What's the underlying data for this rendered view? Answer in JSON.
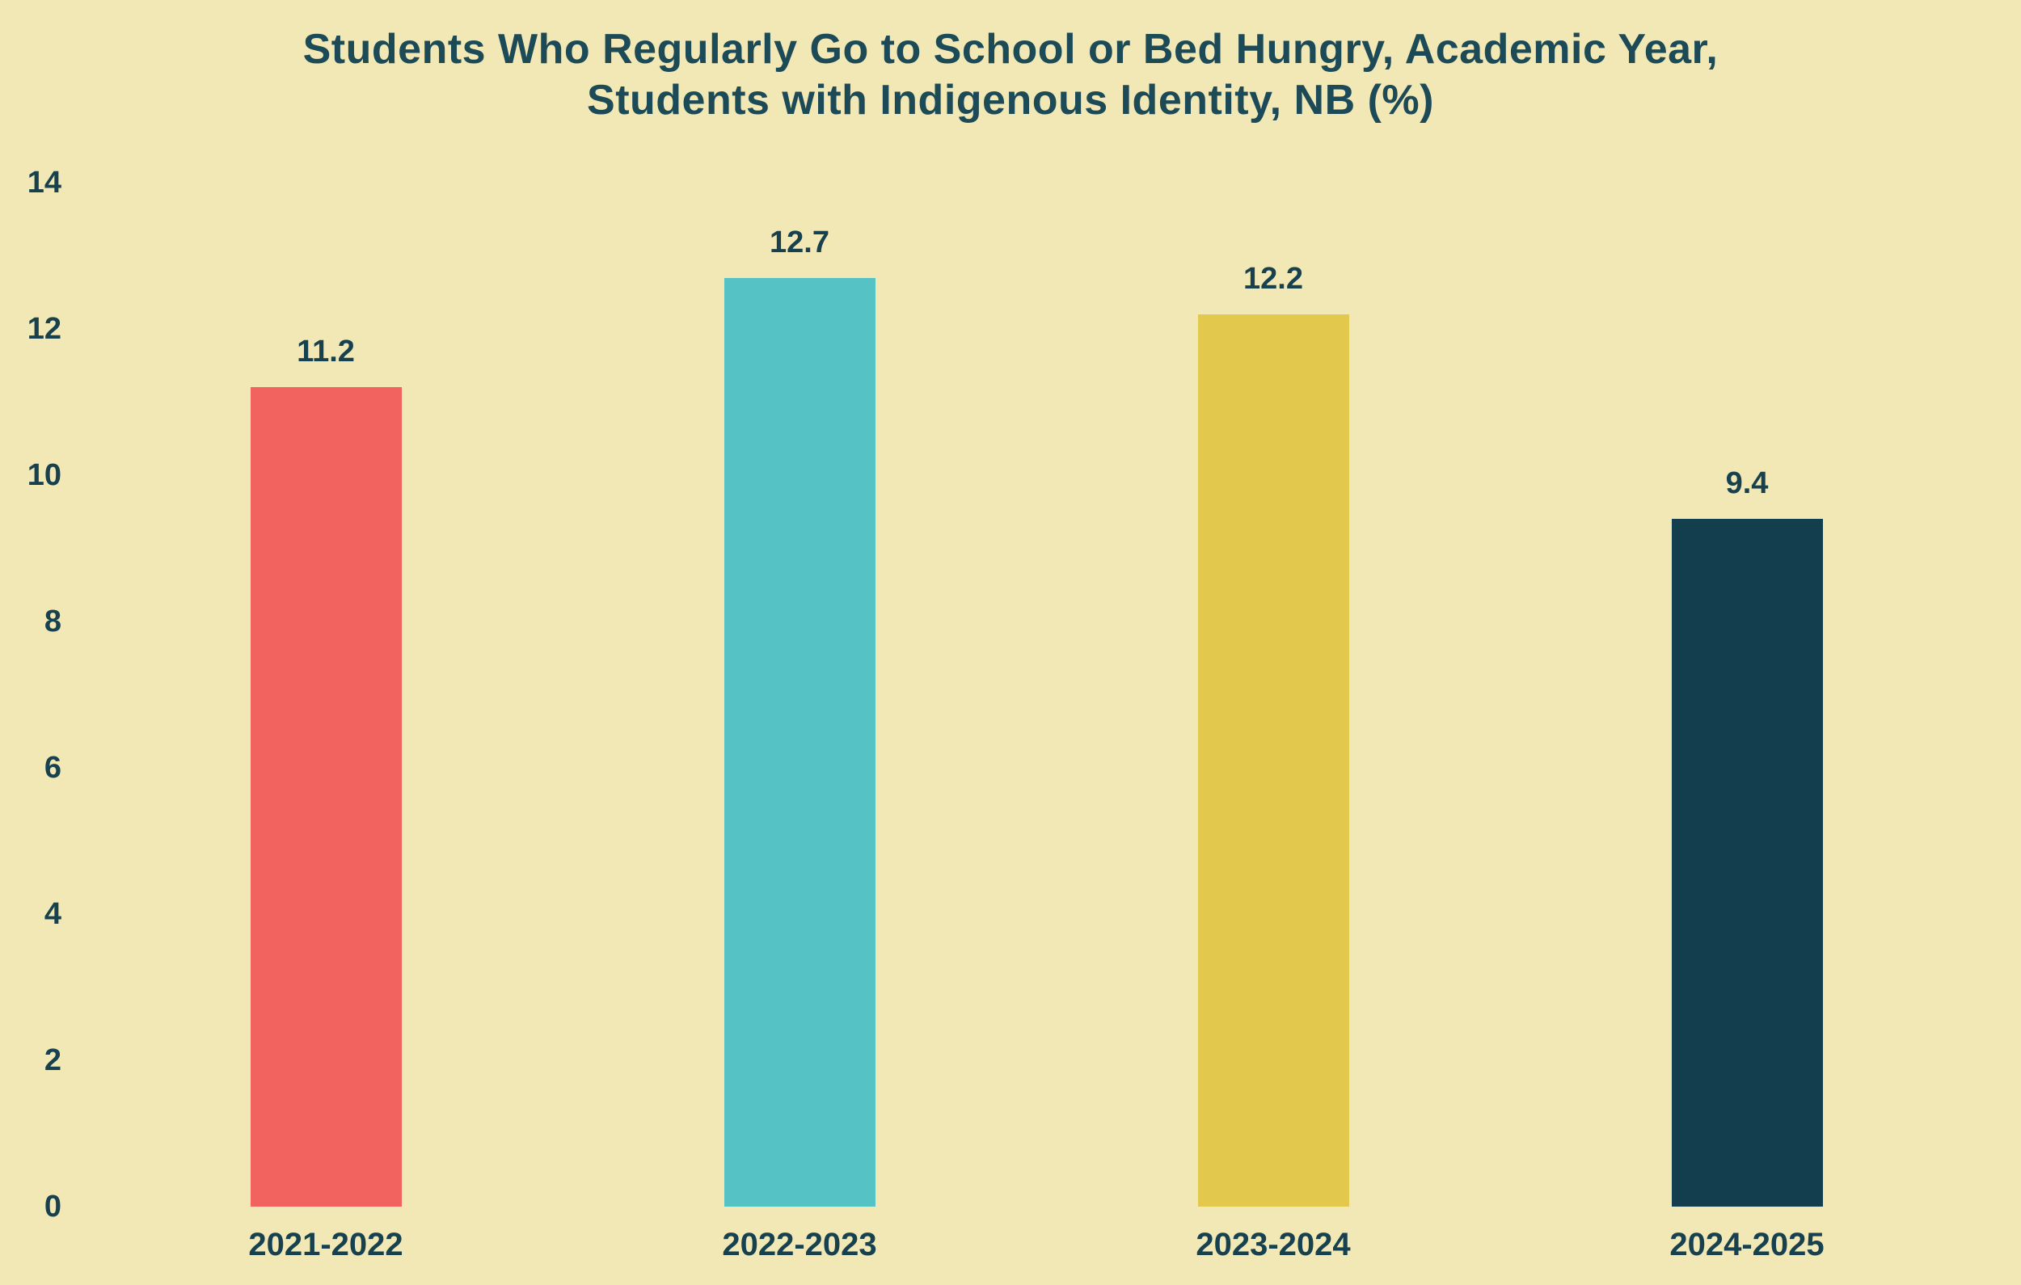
{
  "page": {
    "background_color": "#f2e8b6",
    "title_color": "#1d4a57",
    "label_color": "#17414f"
  },
  "chart_data": {
    "type": "bar",
    "title": "Students Who Regularly Go to School or Bed Hungry, Academic Year, Students with Indigenous Identity, NB (%)",
    "title_lines": [
      "Students Who Regularly Go to School or Bed Hungry, Academic Year,",
      "Students with Indigenous Identity, NB (%)"
    ],
    "categories": [
      "2021-2022",
      "2022-2023",
      "2023-2024",
      "2024-2025"
    ],
    "values": [
      11.2,
      12.7,
      12.2,
      9.4
    ],
    "value_labels": [
      "11.2",
      "12.7",
      "12.2",
      "9.4"
    ],
    "bar_colors": [
      "#f2625f",
      "#55c3c5",
      "#e2c84c",
      "#123e4d"
    ],
    "xlabel": "",
    "ylabel": "",
    "ylim": [
      0,
      14
    ],
    "yticks": [
      0,
      2,
      4,
      6,
      8,
      10,
      12,
      14
    ],
    "grid": false,
    "legend": false
  }
}
